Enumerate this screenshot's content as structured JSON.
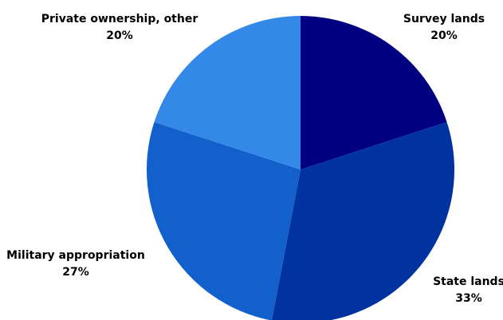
{
  "chart_data": {
    "type": "pie",
    "title": "",
    "categories": [
      "Survey lands",
      "State lands",
      "Military appropriation",
      "Private ownership, other"
    ],
    "values": [
      20,
      33,
      27,
      20
    ],
    "value_labels": [
      "20%",
      "33%",
      "27%",
      "20%"
    ],
    "colors": [
      "#000080",
      "#0033a0",
      "#1160cc",
      "#3388e8"
    ],
    "start_angle_deg": 0,
    "direction": "clockwise",
    "legend": "none"
  }
}
